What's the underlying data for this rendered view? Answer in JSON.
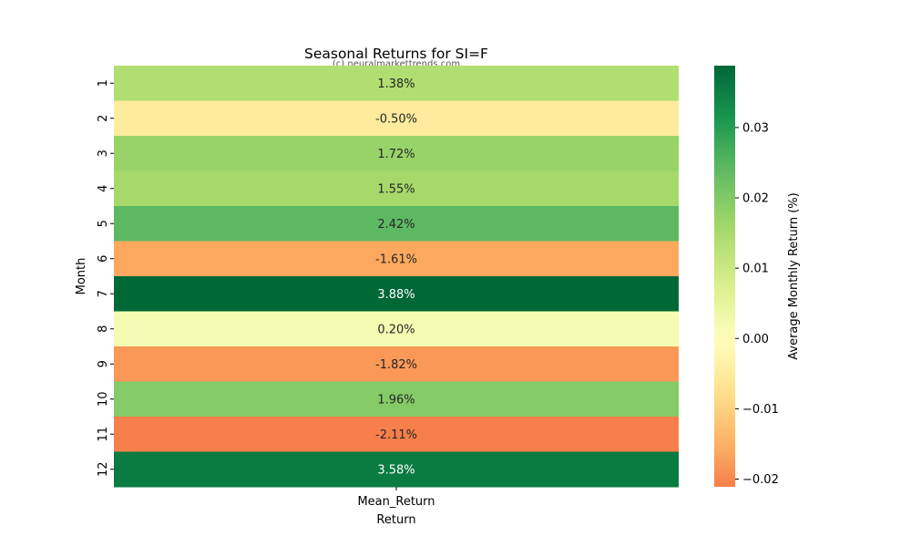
{
  "chart_data": {
    "type": "heatmap",
    "title": "Seasonal Returns for SI=F",
    "watermark": "(c) neuralmarkettrends.com",
    "xlabel": "Return",
    "ylabel": "Month",
    "columns": [
      "Mean_Return"
    ],
    "rows": [
      "1",
      "2",
      "3",
      "4",
      "5",
      "6",
      "7",
      "8",
      "9",
      "10",
      "11",
      "12"
    ],
    "values": [
      0.0138,
      -0.005,
      0.0172,
      0.0155,
      0.0242,
      -0.0161,
      0.0388,
      0.002,
      -0.0182,
      0.0196,
      -0.0211,
      0.0358
    ],
    "cell_labels": [
      "1.38%",
      "-0.50%",
      "1.72%",
      "1.55%",
      "2.42%",
      "-1.61%",
      "3.88%",
      "0.20%",
      "-1.82%",
      "1.96%",
      "-2.11%",
      "3.58%"
    ],
    "colormap": "RdYlGn",
    "center": 0,
    "vmin": -0.0211,
    "vmax": 0.0388,
    "colorbar": {
      "label": "Average Monthly Return (%)",
      "ticks": [
        -0.02,
        -0.01,
        0.0,
        0.01,
        0.02,
        0.03
      ],
      "tick_labels": [
        "−0.02",
        "−0.01",
        "0.00",
        "0.01",
        "0.02",
        "0.03"
      ]
    }
  }
}
